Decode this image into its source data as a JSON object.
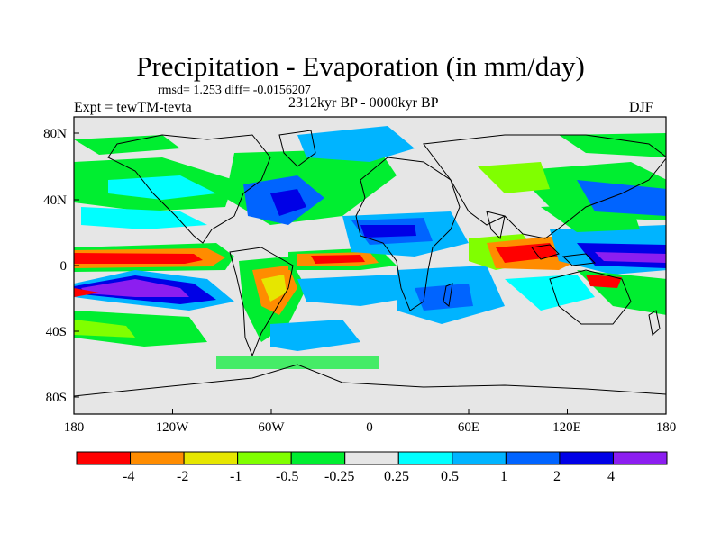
{
  "title": "Precipitation - Evaporation (in mm/day)",
  "stats": "rmsd= 1.253 diff= -0.0156207",
  "experiment": "Expt = tewTM-tevta",
  "period": "2312kyr BP - 0000kyr BP",
  "season": "DJF",
  "lat_ticks": [
    "80N",
    "40N",
    "0",
    "40S",
    "80S"
  ],
  "lon_ticks": [
    "180",
    "120W",
    "60W",
    "0",
    "60E",
    "120E",
    "180"
  ],
  "colorbar": {
    "colors": [
      "#ff0000",
      "#ff8c00",
      "#e6e600",
      "#80ff00",
      "#00ee30",
      "#e6e6e6",
      "#00ffff",
      "#00b4ff",
      "#0064ff",
      "#0000e6",
      "#8c1ef0"
    ],
    "labels": [
      "-4",
      "-2",
      "-1",
      "-0.5",
      "-0.25",
      "0.25",
      "0.5",
      "1",
      "2",
      "4"
    ]
  },
  "colors": {
    "background_field": "#e6e6e6",
    "coastline": "#000000"
  }
}
